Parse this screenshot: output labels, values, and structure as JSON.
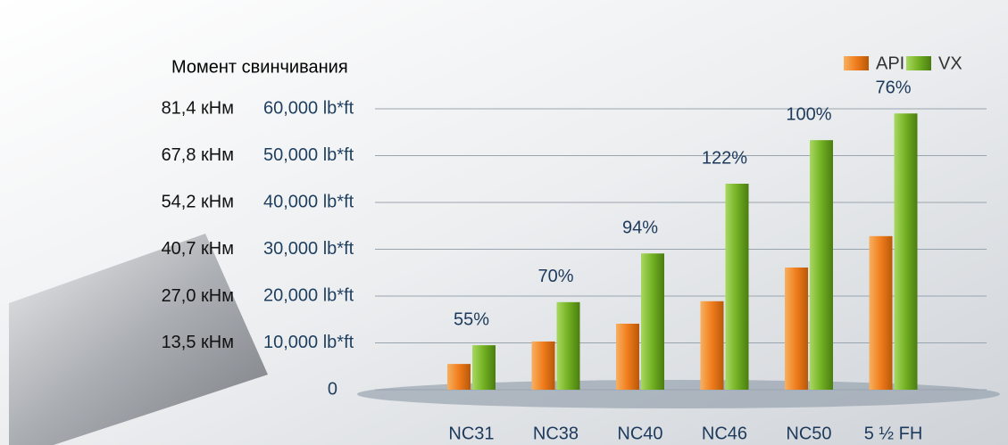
{
  "chart_data": {
    "type": "bar",
    "y_axis_title": "Момент свинчивания",
    "categories": [
      "NC31",
      "NC38",
      "NC40",
      "NC46",
      "NC50",
      "5 ½ FH"
    ],
    "series": [
      {
        "name": "API",
        "color": "#f07c1c",
        "values": [
          5500,
          10300,
          14100,
          18900,
          26100,
          32800
        ]
      },
      {
        "name": "VX",
        "color": "#72b022",
        "values": [
          9500,
          18700,
          29100,
          44000,
          53300,
          59000
        ]
      }
    ],
    "increase_values": [
      55,
      70,
      94,
      122,
      100,
      76
    ],
    "increase_labels": [
      "55%",
      "70%",
      "94%",
      "122%",
      "100%",
      "76%"
    ],
    "ylim": [
      0,
      60000
    ],
    "yticks": [
      0,
      {
        "value": 10000,
        "label": "10,000 lb*ft"
      },
      {
        "value": 20000,
        "label": "20,000 lb*ft"
      },
      {
        "value": 30000,
        "label": "30,000 lb*ft"
      },
      {
        "value": 40000,
        "label": "40,000 lb*ft"
      },
      {
        "value": 50000,
        "label": "50,000 lb*ft"
      },
      {
        "value": 60000,
        "label": "60,000 lb*ft"
      }
    ],
    "y2lim": [
      0,
      81.4
    ],
    "y2ticks": [
      {
        "value": 13.5,
        "label": "13,5 кНм"
      },
      {
        "value": 27.0,
        "label": "27,0 кНм"
      },
      {
        "value": 40.7,
        "label": "40,7 кНм"
      },
      {
        "value": 54.2,
        "label": "54,2 кНм"
      },
      {
        "value": 67.8,
        "label": "67,8 кНм"
      },
      {
        "value": 81.4,
        "label": "81,4 кНм"
      }
    ],
    "grid": true,
    "legend": "top-right"
  }
}
